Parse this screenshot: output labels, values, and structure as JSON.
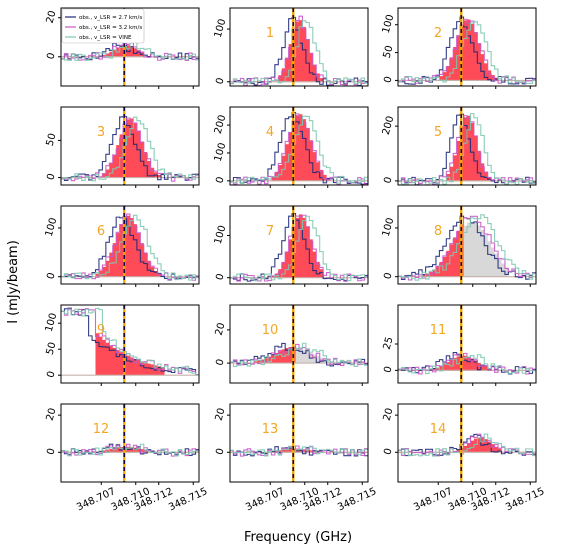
{
  "figure": {
    "ylabel": "I (mJy/beam)",
    "xlabel": "Frequency (GHz)",
    "x_tick_labels": [
      "348.707",
      "348.710",
      "348.712",
      "348.715"
    ],
    "x_ticks": [
      348.707,
      348.71,
      348.712,
      348.715
    ],
    "vline_frequency": 348.709,
    "vline_colors": [
      "#1a0a3c",
      "#f5a800"
    ],
    "label_color": "#f5a623"
  },
  "legend": {
    "entries": [
      {
        "label": "obs., v_LSR = 2.7 km/s",
        "color": "#1f2a7a"
      },
      {
        "label": "obs., v_LSR = 3.2 km/s",
        "color": "#c957c9"
      },
      {
        "label": "obs., v_LSR = VINE",
        "color": "#7ec8b0"
      }
    ]
  },
  "chart_data": {
    "type": "line",
    "x_range": [
      348.7035,
      348.7155
    ],
    "fill_colors": {
      "model": "#ff4a57",
      "alt": "#d8d8d8"
    },
    "panels": [
      {
        "label": "",
        "ylim": [
          -15,
          25
        ],
        "yticks": [
          0,
          20
        ],
        "fill_range": [
          348.7055,
          348.7105
        ],
        "fill_peak": 348.709,
        "fill_amp": 6,
        "has_legend": true
      },
      {
        "label": "1",
        "ylim": [
          -8,
          140
        ],
        "yticks": [
          0,
          100
        ],
        "fill_range": [
          348.7075,
          348.7115
        ],
        "fill_peak": 348.7094,
        "fill_amp": 118
      },
      {
        "label": "2",
        "ylim": [
          -10,
          130
        ],
        "yticks": [
          0,
          50,
          100
        ],
        "fill_range": [
          348.707,
          348.712
        ],
        "fill_peak": 348.7094,
        "fill_amp": 110
      },
      {
        "label": "3",
        "ylim": [
          -10,
          95
        ],
        "yticks": [
          0,
          50
        ],
        "fill_range": [
          348.707,
          348.712
        ],
        "fill_peak": 348.7094,
        "fill_amp": 80
      },
      {
        "label": "4",
        "ylim": [
          -15,
          265
        ],
        "yticks": [
          0,
          100,
          200
        ],
        "fill_range": [
          348.707,
          348.712
        ],
        "fill_peak": 348.7094,
        "fill_amp": 240
      },
      {
        "label": "5",
        "ylim": [
          -15,
          270
        ],
        "yticks": [
          0,
          200
        ],
        "fill_range": [
          348.7075,
          348.7115
        ],
        "fill_peak": 348.7094,
        "fill_amp": 240
      },
      {
        "label": "6",
        "ylim": [
          -15,
          145
        ],
        "yticks": [
          0,
          100
        ],
        "fill_range": [
          348.7065,
          348.712
        ],
        "fill_peak": 348.7092,
        "fill_amp": 125
      },
      {
        "label": "7",
        "ylim": [
          -15,
          170
        ],
        "yticks": [
          0,
          100
        ],
        "fill_range": [
          348.707,
          348.7115
        ],
        "fill_peak": 348.7095,
        "fill_amp": 150
      },
      {
        "label": "8",
        "ylim": [
          -15,
          145
        ],
        "yticks": [
          0,
          100
        ],
        "fill_range": [
          348.7055,
          348.7135
        ],
        "fill_peak": 348.7098,
        "fill_amp": 125,
        "has_alt_fill": true
      },
      {
        "label": "9",
        "ylim": [
          -15,
          135
        ],
        "yticks": [
          0,
          50,
          100
        ],
        "fill_range": [
          348.7065,
          348.7125
        ],
        "fill_peak": 348.707,
        "fill_amp": 70,
        "decay": true
      },
      {
        "label": "10",
        "ylim": [
          -12,
          35
        ],
        "yticks": [
          0,
          20
        ],
        "fill_range": [
          348.7055,
          348.7135
        ],
        "fill_peak": 348.709,
        "fill_amp": 10,
        "has_alt_fill": true
      },
      {
        "label": "11",
        "ylim": [
          -12,
          62
        ],
        "yticks": [
          0,
          25
        ],
        "fill_range": [
          348.7055,
          348.7115
        ],
        "fill_peak": 348.709,
        "fill_amp": 14
      },
      {
        "label": "12",
        "ylim": [
          -16,
          26
        ],
        "yticks": [
          0,
          20
        ],
        "fill_range": [
          348.706,
          348.7125
        ],
        "fill_peak": 348.709,
        "fill_amp": 3
      },
      {
        "label": "13",
        "ylim": [
          -16,
          26
        ],
        "yticks": [
          0,
          20
        ],
        "fill_range": [
          348.706,
          348.712
        ],
        "fill_peak": 348.709,
        "fill_amp": 2
      },
      {
        "label": "14",
        "ylim": [
          -16,
          26
        ],
        "yticks": [
          0,
          20
        ],
        "fill_range": [
          348.7075,
          348.7125
        ],
        "fill_peak": 348.7105,
        "fill_amp": 8
      }
    ]
  }
}
